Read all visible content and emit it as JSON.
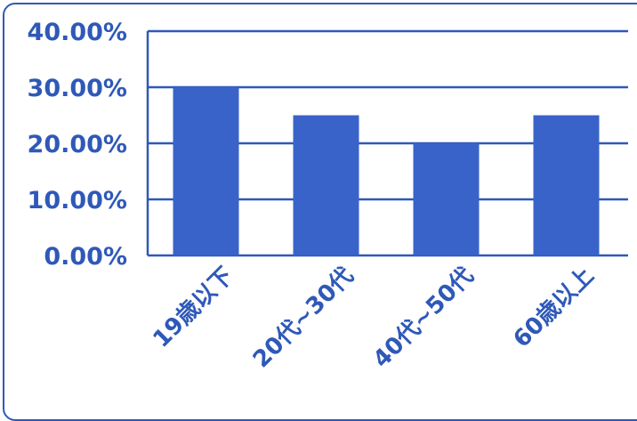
{
  "chart_data": {
    "type": "bar",
    "categories": [
      "19歳以下",
      "20代~30代",
      "40代~50代",
      "60歳以上"
    ],
    "values": [
      30,
      25,
      20,
      25
    ],
    "ylim": [
      0,
      40
    ],
    "yticks": [
      0,
      10,
      20,
      30,
      40
    ],
    "ytick_labels": [
      "0.00%",
      "10.00%",
      "20.00%",
      "30.00%",
      "40.00%"
    ],
    "grid": true,
    "legend": "none",
    "title": "",
    "xlabel": "",
    "ylabel": ""
  },
  "colors": {
    "bar": "#3a63c9",
    "axis": "#2f59b8",
    "text": "#2f59b8"
  }
}
